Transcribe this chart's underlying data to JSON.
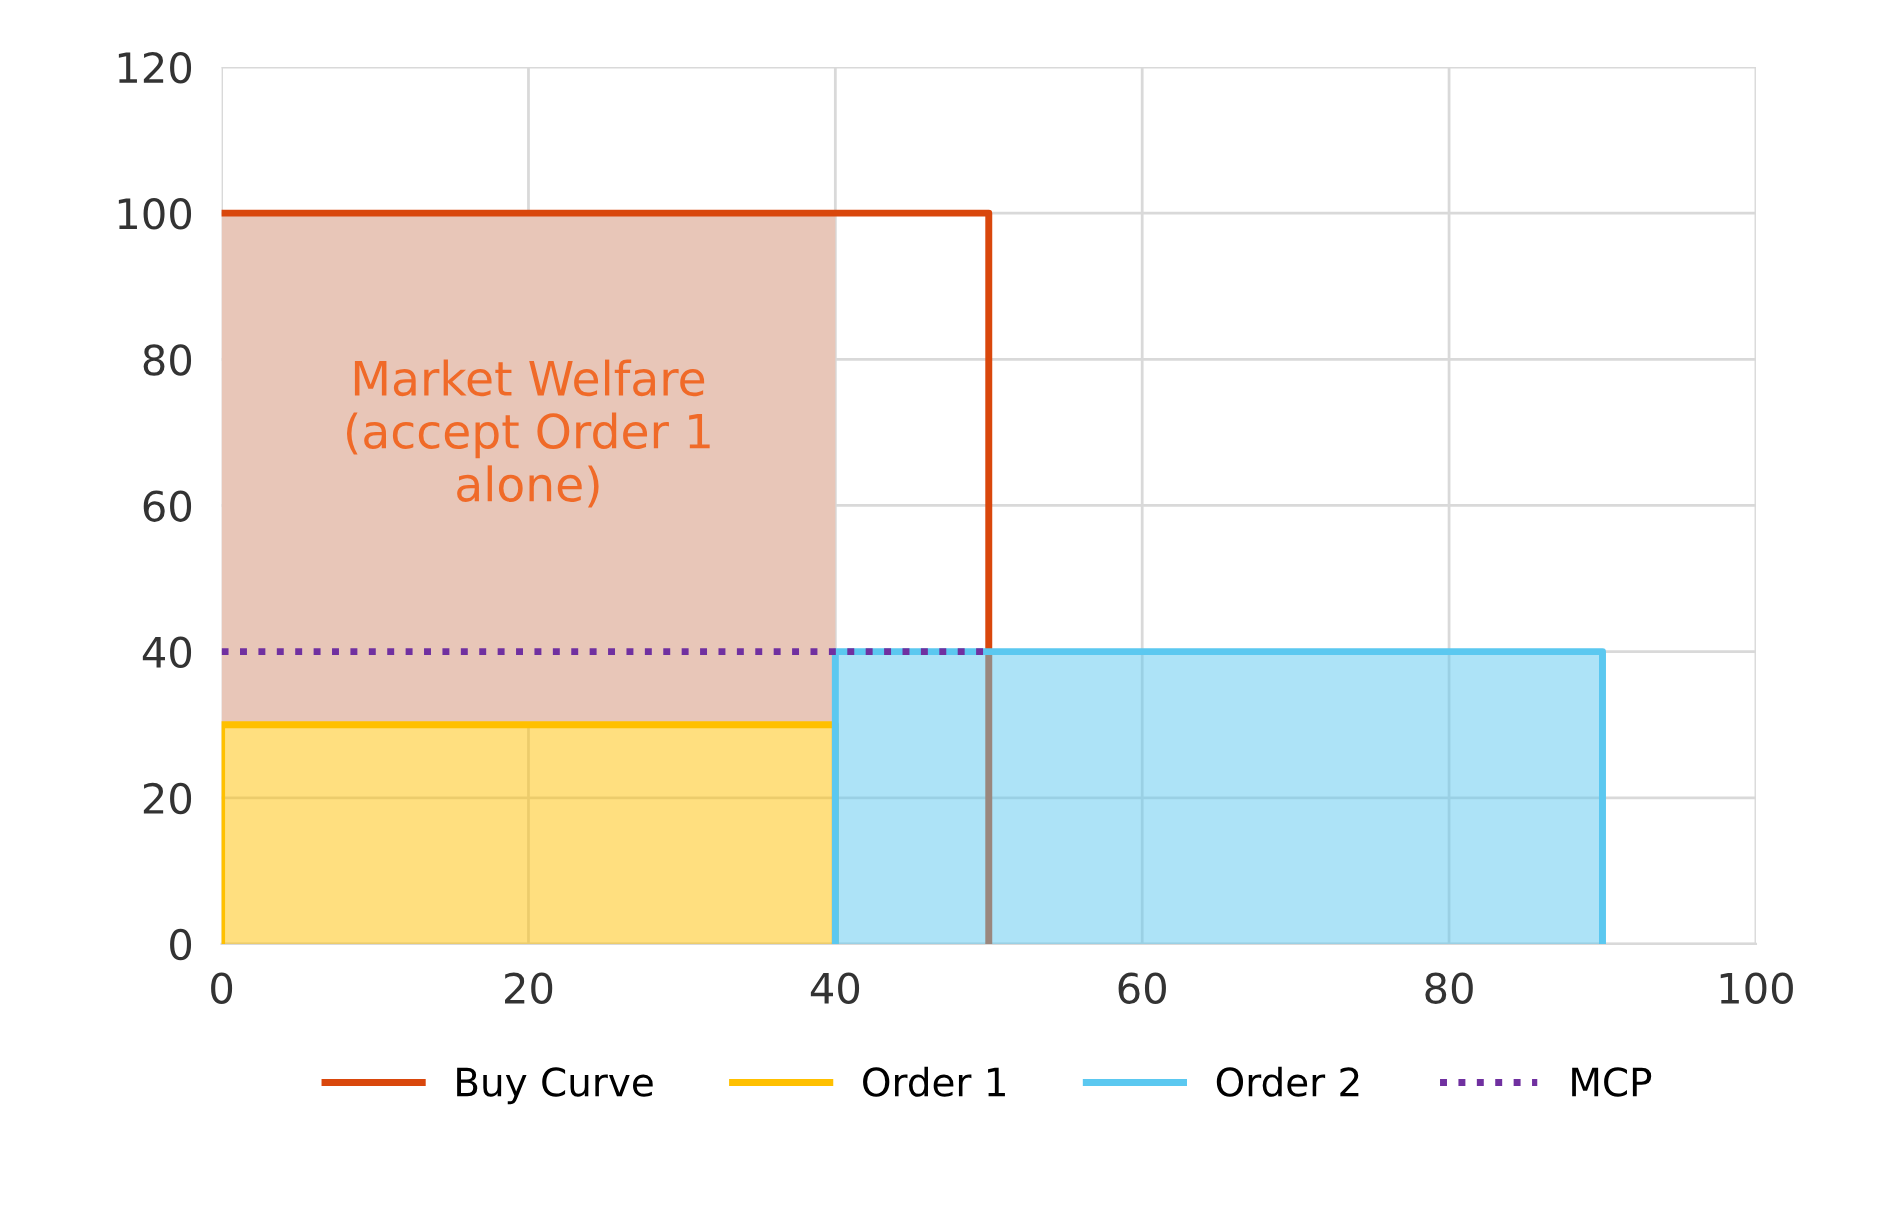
{
  "chart_data": {
    "type": "line",
    "series": [
      {
        "type": "area",
        "color": "#e8c6b8",
        "x": [
          0,
          0,
          40,
          40
        ],
        "values": [
          30,
          100,
          100,
          30
        ]
      },
      {
        "name": "Buy Curve",
        "color": "#d9470c",
        "x": [
          0,
          50,
          50
        ],
        "values": [
          100,
          100,
          0
        ]
      },
      {
        "name": "Order 1",
        "type": "area",
        "color": "#ffc000",
        "x": [
          0,
          0,
          40,
          40
        ],
        "values": [
          0,
          30,
          30,
          0
        ]
      },
      {
        "name": "Order 2",
        "type": "area",
        "color": "#5bc8f0",
        "x": [
          40,
          40,
          90,
          90
        ],
        "values": [
          0,
          40,
          40,
          0
        ]
      },
      {
        "name": "MCP",
        "color": "#7030a0",
        "line_style": "dotted",
        "x": [
          0,
          50
        ],
        "values": [
          40,
          40
        ]
      }
    ],
    "xlim": [
      0,
      100
    ],
    "xticks": [
      0,
      20,
      40,
      60,
      80,
      100
    ],
    "ylim": [
      0,
      120
    ],
    "yticks": [
      0,
      20,
      40,
      60,
      80,
      100,
      120
    ],
    "grid": true,
    "legend": "bottom",
    "annotations": [
      "Market Welfare\n(accept Order 1\nalone)"
    ]
  }
}
